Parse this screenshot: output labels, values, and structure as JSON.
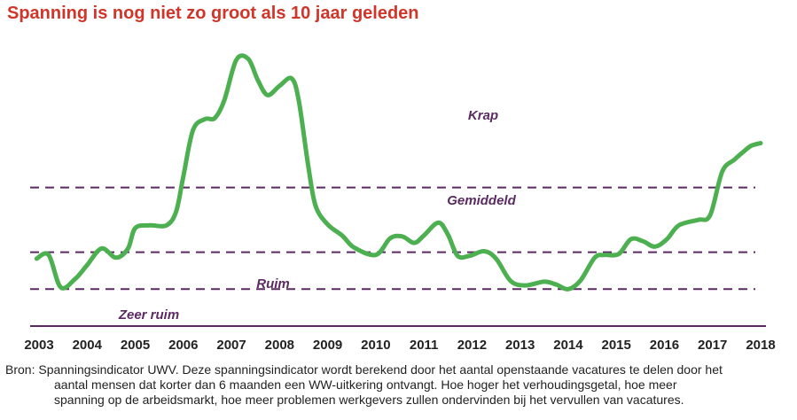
{
  "chart_data": {
    "type": "line",
    "title": "Spanning is nog niet zo groot als 10 jaar geleden",
    "x_ticks": [
      "2003",
      "2004",
      "2005",
      "2006",
      "2007",
      "2008",
      "2009",
      "2010",
      "2011",
      "2012",
      "2013",
      "2014",
      "2015",
      "2016",
      "2017",
      "2018"
    ],
    "xlim": [
      2003,
      2018
    ],
    "zones": [
      "Krap",
      "Gemiddeld",
      "Ruim",
      "Zeer ruim"
    ],
    "thresholds": [
      0.2,
      0.4,
      0.75
    ],
    "ylim": [
      0,
      1.4
    ],
    "series": [
      {
        "color": "#4caf50",
        "points": [
          [
            2002.95,
            0.365
          ],
          [
            2003.2,
            0.385
          ],
          [
            2003.45,
            0.21
          ],
          [
            2003.75,
            0.255
          ],
          [
            2004.0,
            0.33
          ],
          [
            2004.3,
            0.42
          ],
          [
            2004.6,
            0.37
          ],
          [
            2004.85,
            0.42
          ],
          [
            2005.0,
            0.53
          ],
          [
            2005.3,
            0.545
          ],
          [
            2005.65,
            0.545
          ],
          [
            2005.85,
            0.62
          ],
          [
            2006.0,
            0.81
          ],
          [
            2006.2,
            1.06
          ],
          [
            2006.45,
            1.12
          ],
          [
            2006.65,
            1.125
          ],
          [
            2006.85,
            1.22
          ],
          [
            2007.1,
            1.44
          ],
          [
            2007.35,
            1.445
          ],
          [
            2007.55,
            1.33
          ],
          [
            2007.75,
            1.25
          ],
          [
            2008.0,
            1.3
          ],
          [
            2008.25,
            1.34
          ],
          [
            2008.4,
            1.22
          ],
          [
            2008.6,
            0.86
          ],
          [
            2008.75,
            0.65
          ],
          [
            2009.0,
            0.55
          ],
          [
            2009.3,
            0.49
          ],
          [
            2009.55,
            0.425
          ],
          [
            2010.0,
            0.385
          ],
          [
            2010.3,
            0.475
          ],
          [
            2010.55,
            0.485
          ],
          [
            2010.8,
            0.45
          ],
          [
            2011.0,
            0.49
          ],
          [
            2011.3,
            0.56
          ],
          [
            2011.5,
            0.495
          ],
          [
            2011.7,
            0.38
          ],
          [
            2011.95,
            0.38
          ],
          [
            2012.25,
            0.405
          ],
          [
            2012.5,
            0.365
          ],
          [
            2012.8,
            0.245
          ],
          [
            2013.1,
            0.22
          ],
          [
            2013.5,
            0.24
          ],
          [
            2013.75,
            0.225
          ],
          [
            2014.0,
            0.2
          ],
          [
            2014.25,
            0.245
          ],
          [
            2014.55,
            0.37
          ],
          [
            2014.75,
            0.385
          ],
          [
            2015.05,
            0.39
          ],
          [
            2015.3,
            0.47
          ],
          [
            2015.55,
            0.46
          ],
          [
            2015.8,
            0.43
          ],
          [
            2016.05,
            0.47
          ],
          [
            2016.3,
            0.545
          ],
          [
            2016.7,
            0.575
          ],
          [
            2016.95,
            0.6
          ],
          [
            2017.2,
            0.835
          ],
          [
            2017.45,
            0.9
          ],
          [
            2017.65,
            0.945
          ],
          [
            2017.8,
            0.975
          ],
          [
            2018.0,
            0.99
          ]
        ]
      }
    ],
    "grid": false
  },
  "source": {
    "line1": "Bron: Spanningsindicator UWV. Deze spanningsindicator wordt berekend door het aantal openstaande vacatures te delen door het",
    "line2": "aantal mensen dat korter dan 6 maanden een WW-uitkering ontvangt. Hoe hoger het verhoudingsgetal, hoe meer",
    "line3": "spanning op de arbeidsmarkt, hoe meer problemen werkgevers zullen ondervinden bij het vervullen van vacatures."
  },
  "colors": {
    "title": "#d0352a",
    "line": "#4caf50",
    "dashes": "#5b2a63",
    "axis": "#5b2a63"
  }
}
